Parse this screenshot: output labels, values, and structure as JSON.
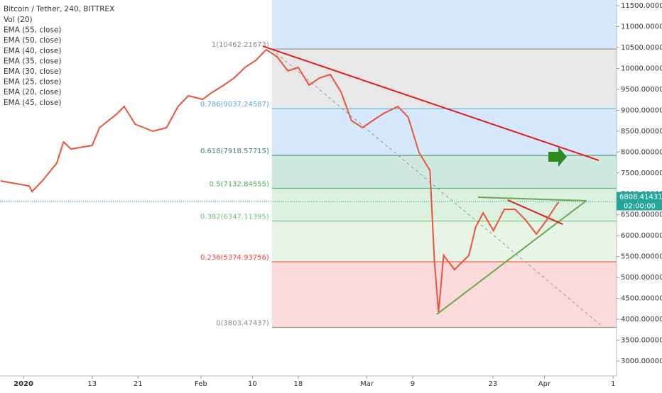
{
  "chart_data": {
    "type": "line",
    "title": "Bitcoin / Tether, 240, BITTREX",
    "indicators": [
      "Vol (20)",
      "EMA (55, close)",
      "EMA (50, close)",
      "EMA (40, close)",
      "EMA (35, close)",
      "EMA (30, close)",
      "EMA (25, close)",
      "EMA (20, close)",
      "EMA (45, close)"
    ],
    "x": [
      -4,
      1,
      1.5,
      3.3,
      5.8,
      7,
      8.3,
      12,
      13.3,
      16.4,
      17.6,
      19.5,
      22.6,
      25,
      27,
      28.8,
      31.3,
      33,
      35,
      36.8,
      38.7,
      40.6,
      42.4,
      44.3,
      46.2,
      48,
      49.9,
      51.7,
      53.6,
      55.5,
      57.3,
      59.2,
      61,
      62.9,
      65.4,
      67.2,
      69.1,
      71,
      71.8,
      72.5,
      73.4,
      75.3,
      77.8,
      79,
      80.3,
      82.1,
      84,
      85.9,
      87.7,
      89.6,
      91.4,
      93,
      93.5
    ],
    "series": [
      {
        "name": "Bitcoin / Tether",
        "color": "#e8553a",
        "values": [
          7309,
          7190,
          7055,
          7310,
          7733,
          8243,
          8073,
          8158,
          8582,
          8921,
          9090,
          8667,
          8497,
          8582,
          9090,
          9345,
          9260,
          9430,
          9600,
          9769,
          10024,
          10194,
          10448,
          10278,
          9939,
          10024,
          9600,
          9769,
          9854,
          9430,
          8752,
          8582,
          8752,
          8921,
          9090,
          8836,
          7988,
          7564,
          5358,
          4170,
          5528,
          5188,
          5528,
          6206,
          6545,
          6121,
          6630,
          6630,
          6376,
          6037,
          6376,
          6715,
          6800
        ]
      }
    ],
    "xlim": [
      -4.1,
      103.6
    ],
    "xticks": [
      {
        "value": 0,
        "label": "2020"
      },
      {
        "value": 12,
        "label": "13"
      },
      {
        "value": 20,
        "label": "21"
      },
      {
        "value": 31,
        "label": "Feb"
      },
      {
        "value": 40,
        "label": "10"
      },
      {
        "value": 48,
        "label": "18"
      },
      {
        "value": 60,
        "label": "Mar"
      },
      {
        "value": 68,
        "label": "9"
      },
      {
        "value": 82,
        "label": "23"
      },
      {
        "value": 91,
        "label": "Apr"
      },
      {
        "value": 103,
        "label": "1"
      }
    ],
    "ylim": [
      2644,
      11636
    ],
    "yticks": [
      {
        "value": 3000,
        "label": "3000.00000"
      },
      {
        "value": 3500,
        "label": "3500.00000"
      },
      {
        "value": 4000,
        "label": "4000.00000"
      },
      {
        "value": 4500,
        "label": "4500.00000"
      },
      {
        "value": 5000,
        "label": "5000.00000"
      },
      {
        "value": 5500,
        "label": "5500.00000"
      },
      {
        "value": 6000,
        "label": "6000.00000"
      },
      {
        "value": 6500,
        "label": "6500.00000"
      },
      {
        "value": 7000,
        "label": "7000.00000"
      },
      {
        "value": 7500,
        "label": "7500.00000"
      },
      {
        "value": 8000,
        "label": "8000.00000"
      },
      {
        "value": 8500,
        "label": "8500.00000"
      },
      {
        "value": 9000,
        "label": "9000.00000"
      },
      {
        "value": 9500,
        "label": "9500.00000"
      },
      {
        "value": 10000,
        "label": "10000.00000"
      },
      {
        "value": 10500,
        "label": "10500.00000"
      },
      {
        "value": 11000,
        "label": "11000.00000"
      },
      {
        "value": 11500,
        "label": "11500.00000"
      }
    ],
    "last_price": {
      "value": 6808.41431,
      "label": "6808.41431",
      "timer": "02:00:00",
      "color": "#26a69a"
    },
    "fib": {
      "start": 43.4,
      "top_color": "#d6e8fb",
      "levels": [
        {
          "value": 10462.21673,
          "label": "1(10462.21673)",
          "color": "#8a8a8a",
          "zone": "#e8e8e8"
        },
        {
          "value": 9037.24587,
          "label": "0.786(9037.24587)",
          "color": "#5aa7e5",
          "zone": "#d6e8fb"
        },
        {
          "value": 7918.57715,
          "label": "0.618(7918.57715)",
          "color": "#3d8b5e",
          "zone": "#cfe9e1"
        },
        {
          "value": 7132.84555,
          "label": "0.5(7132.84555)",
          "color": "#4caf50",
          "zone": "#dcf0df"
        },
        {
          "value": 6347.11395,
          "label": "0.382(6347.11395)",
          "color": "#6fbf73",
          "zone": "#e8f5e6"
        },
        {
          "value": 5374.93756,
          "label": "0.236(5374.93756)",
          "color": "#f44336",
          "zone": "#fadada"
        },
        {
          "value": 3803.47437,
          "label": "0(3803.47437)",
          "color": "#8a8a8a",
          "zone": null
        }
      ]
    },
    "trendlines": [
      {
        "color": "#e01e1e",
        "dashed": false,
        "x": [
          41.8,
          100.5
        ],
        "values": [
          10533,
          7801
        ]
      },
      {
        "color": "#999999",
        "dashed": true,
        "x": [
          43.4,
          101.4
        ],
        "values": [
          10448,
          3797
        ]
      },
      {
        "color": "#6aa84f",
        "dashed": false,
        "x": [
          72.2,
          98.3
        ],
        "values": [
          4119,
          6834
        ]
      },
      {
        "color": "#6aa84f",
        "dashed": false,
        "x": [
          79.4,
          98.3
        ],
        "values": [
          6919,
          6834
        ]
      },
      {
        "color": "#e01e1e",
        "dashed": false,
        "x": [
          84.6,
          94.2
        ],
        "values": [
          6851,
          6274
        ]
      }
    ]
  }
}
